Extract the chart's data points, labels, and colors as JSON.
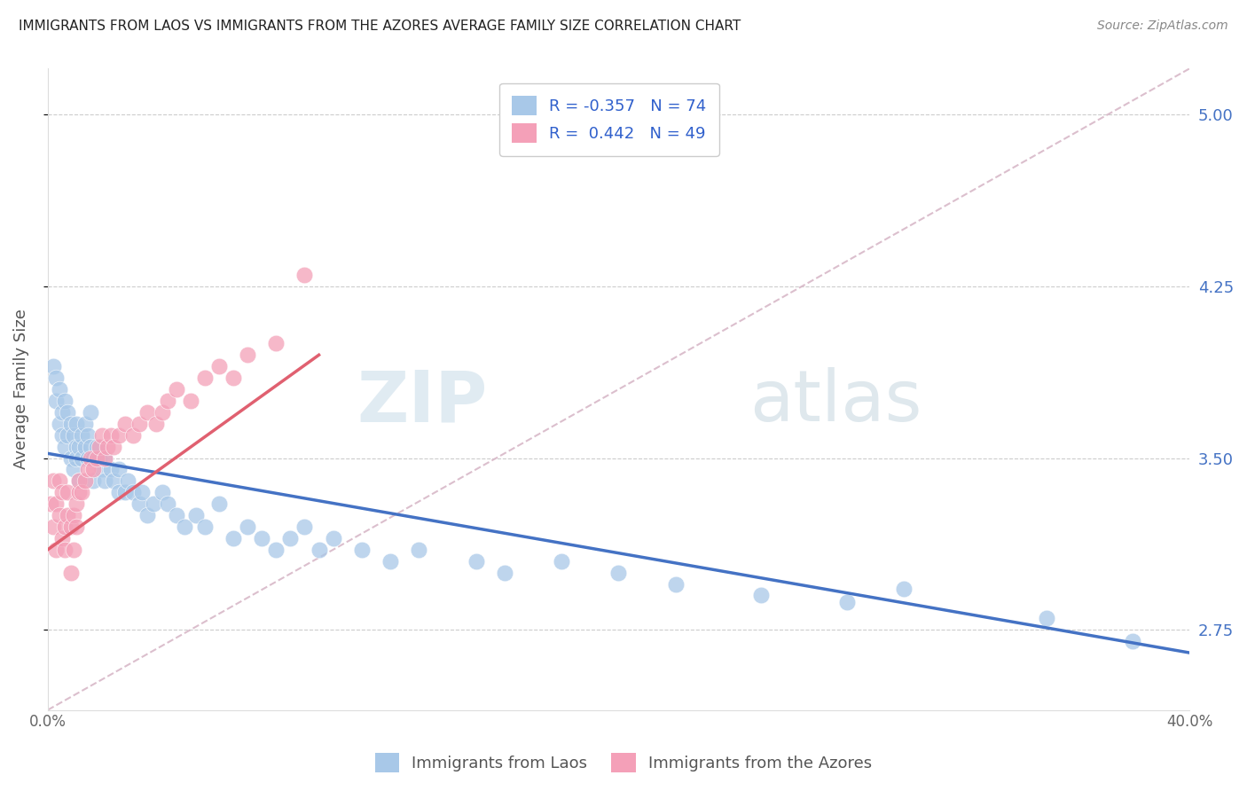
{
  "title": "IMMIGRANTS FROM LAOS VS IMMIGRANTS FROM THE AZORES AVERAGE FAMILY SIZE CORRELATION CHART",
  "source": "Source: ZipAtlas.com",
  "ylabel": "Average Family Size",
  "yticks": [
    2.75,
    3.5,
    4.25,
    5.0
  ],
  "xlim": [
    0.0,
    0.4
  ],
  "ylim": [
    2.4,
    5.2
  ],
  "laos_R": -0.357,
  "laos_N": 74,
  "azores_R": 0.442,
  "azores_N": 49,
  "laos_color": "#a8c8e8",
  "azores_color": "#f4a0b8",
  "laos_line_color": "#4472c4",
  "azores_line_color": "#e06070",
  "diagonal_color": "#d8b8c8",
  "legend_r_color": "#3060cc",
  "title_color": "#222222",
  "source_color": "#888888",
  "right_axis_color": "#4472c4",
  "ylabel_color": "#555555",
  "bottom_label_color": "#555555",
  "watermark_color": "#ccdded",
  "laos_x": [
    0.002,
    0.003,
    0.003,
    0.004,
    0.004,
    0.005,
    0.005,
    0.006,
    0.006,
    0.007,
    0.007,
    0.008,
    0.008,
    0.009,
    0.009,
    0.01,
    0.01,
    0.01,
    0.011,
    0.011,
    0.012,
    0.012,
    0.013,
    0.013,
    0.014,
    0.014,
    0.015,
    0.015,
    0.016,
    0.016,
    0.017,
    0.018,
    0.019,
    0.02,
    0.02,
    0.022,
    0.023,
    0.025,
    0.025,
    0.027,
    0.028,
    0.03,
    0.032,
    0.033,
    0.035,
    0.037,
    0.04,
    0.042,
    0.045,
    0.048,
    0.052,
    0.055,
    0.06,
    0.065,
    0.07,
    0.075,
    0.08,
    0.085,
    0.09,
    0.095,
    0.1,
    0.11,
    0.12,
    0.13,
    0.15,
    0.16,
    0.18,
    0.2,
    0.22,
    0.25,
    0.28,
    0.3,
    0.35,
    0.38
  ],
  "laos_y": [
    3.9,
    3.85,
    3.75,
    3.8,
    3.65,
    3.7,
    3.6,
    3.75,
    3.55,
    3.7,
    3.6,
    3.65,
    3.5,
    3.6,
    3.45,
    3.55,
    3.65,
    3.5,
    3.55,
    3.4,
    3.6,
    3.5,
    3.65,
    3.55,
    3.6,
    3.5,
    3.7,
    3.55,
    3.5,
    3.4,
    3.55,
    3.5,
    3.45,
    3.5,
    3.4,
    3.45,
    3.4,
    3.35,
    3.45,
    3.35,
    3.4,
    3.35,
    3.3,
    3.35,
    3.25,
    3.3,
    3.35,
    3.3,
    3.25,
    3.2,
    3.25,
    3.2,
    3.3,
    3.15,
    3.2,
    3.15,
    3.1,
    3.15,
    3.2,
    3.1,
    3.15,
    3.1,
    3.05,
    3.1,
    3.05,
    3.0,
    3.05,
    3.0,
    2.95,
    2.9,
    2.87,
    2.93,
    2.8,
    2.7
  ],
  "azores_x": [
    0.001,
    0.002,
    0.002,
    0.003,
    0.003,
    0.004,
    0.004,
    0.005,
    0.005,
    0.006,
    0.006,
    0.007,
    0.007,
    0.008,
    0.008,
    0.009,
    0.009,
    0.01,
    0.01,
    0.011,
    0.011,
    0.012,
    0.013,
    0.014,
    0.015,
    0.016,
    0.017,
    0.018,
    0.019,
    0.02,
    0.021,
    0.022,
    0.023,
    0.025,
    0.027,
    0.03,
    0.032,
    0.035,
    0.038,
    0.04,
    0.042,
    0.045,
    0.05,
    0.055,
    0.06,
    0.065,
    0.07,
    0.08,
    0.09
  ],
  "azores_y": [
    3.3,
    3.2,
    3.4,
    3.1,
    3.3,
    3.25,
    3.4,
    3.15,
    3.35,
    3.2,
    3.1,
    3.25,
    3.35,
    3.2,
    3.0,
    3.1,
    3.25,
    3.3,
    3.2,
    3.35,
    3.4,
    3.35,
    3.4,
    3.45,
    3.5,
    3.45,
    3.5,
    3.55,
    3.6,
    3.5,
    3.55,
    3.6,
    3.55,
    3.6,
    3.65,
    3.6,
    3.65,
    3.7,
    3.65,
    3.7,
    3.75,
    3.8,
    3.75,
    3.85,
    3.9,
    3.85,
    3.95,
    4.0,
    4.3
  ]
}
